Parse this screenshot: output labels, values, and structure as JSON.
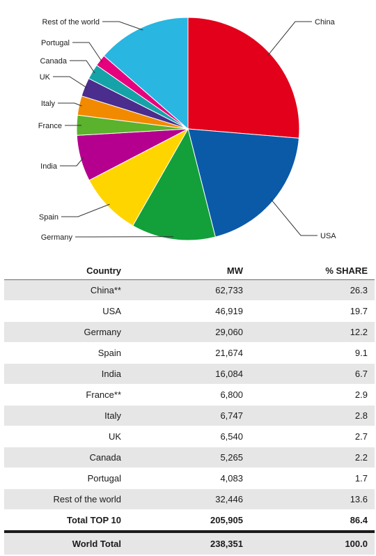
{
  "chart_data": {
    "type": "pie",
    "title": "",
    "slices": [
      {
        "label": "China",
        "value": 26.3,
        "color": "#e2001a"
      },
      {
        "label": "USA",
        "value": 19.7,
        "color": "#0a5aa8"
      },
      {
        "label": "Germany",
        "value": 12.2,
        "color": "#13a03a"
      },
      {
        "label": "Spain",
        "value": 9.1,
        "color": "#ffd500"
      },
      {
        "label": "India",
        "value": 6.7,
        "color": "#b5008f"
      },
      {
        "label": "France",
        "value": 2.9,
        "color": "#5bb22c"
      },
      {
        "label": "Italy",
        "value": 2.8,
        "color": "#f28a00"
      },
      {
        "label": "UK",
        "value": 2.7,
        "color": "#4a2d8c"
      },
      {
        "label": "Canada",
        "value": 2.2,
        "color": "#16a3a8"
      },
      {
        "label": "Portugal",
        "value": 1.7,
        "color": "#e6007e"
      },
      {
        "label": "Rest of the world",
        "value": 13.6,
        "color": "#29b6e0"
      }
    ]
  },
  "table": {
    "headers": {
      "country": "Country",
      "mw": "MW",
      "share": "% SHARE"
    },
    "rows": [
      {
        "country": "China**",
        "mw": "62,733",
        "share": "26.3"
      },
      {
        "country": "USA",
        "mw": "46,919",
        "share": "19.7"
      },
      {
        "country": "Germany",
        "mw": "29,060",
        "share": "12.2"
      },
      {
        "country": "Spain",
        "mw": "21,674",
        "share": "9.1"
      },
      {
        "country": "India",
        "mw": "16,084",
        "share": "6.7"
      },
      {
        "country": "France**",
        "mw": "6,800",
        "share": "2.9"
      },
      {
        "country": "Italy",
        "mw": "6,747",
        "share": "2.8"
      },
      {
        "country": "UK",
        "mw": "6,540",
        "share": "2.7"
      },
      {
        "country": "Canada",
        "mw": "5,265",
        "share": "2.2"
      },
      {
        "country": "Portugal",
        "mw": "4,083",
        "share": "1.7"
      },
      {
        "country": "Rest of the world",
        "mw": "32,446",
        "share": "13.6"
      }
    ],
    "total_top10": {
      "country": "Total TOP 10",
      "mw": "205,905",
      "share": "86.4"
    },
    "world_total": {
      "country": "World Total",
      "mw": "238,351",
      "share": "100.0"
    }
  }
}
